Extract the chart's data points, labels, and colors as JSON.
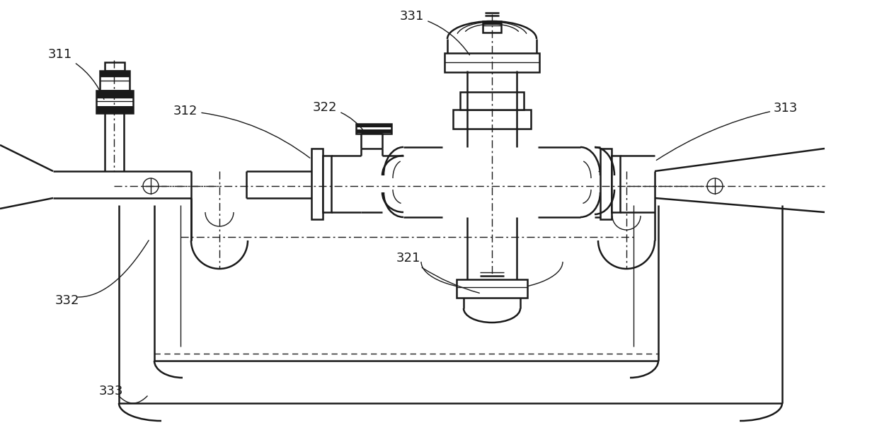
{
  "bg_color": "#ffffff",
  "line_color": "#1a1a1a",
  "lw_thin": 1.0,
  "lw_med": 1.8,
  "lw_thick": 3.2,
  "label_fontsize": 13
}
